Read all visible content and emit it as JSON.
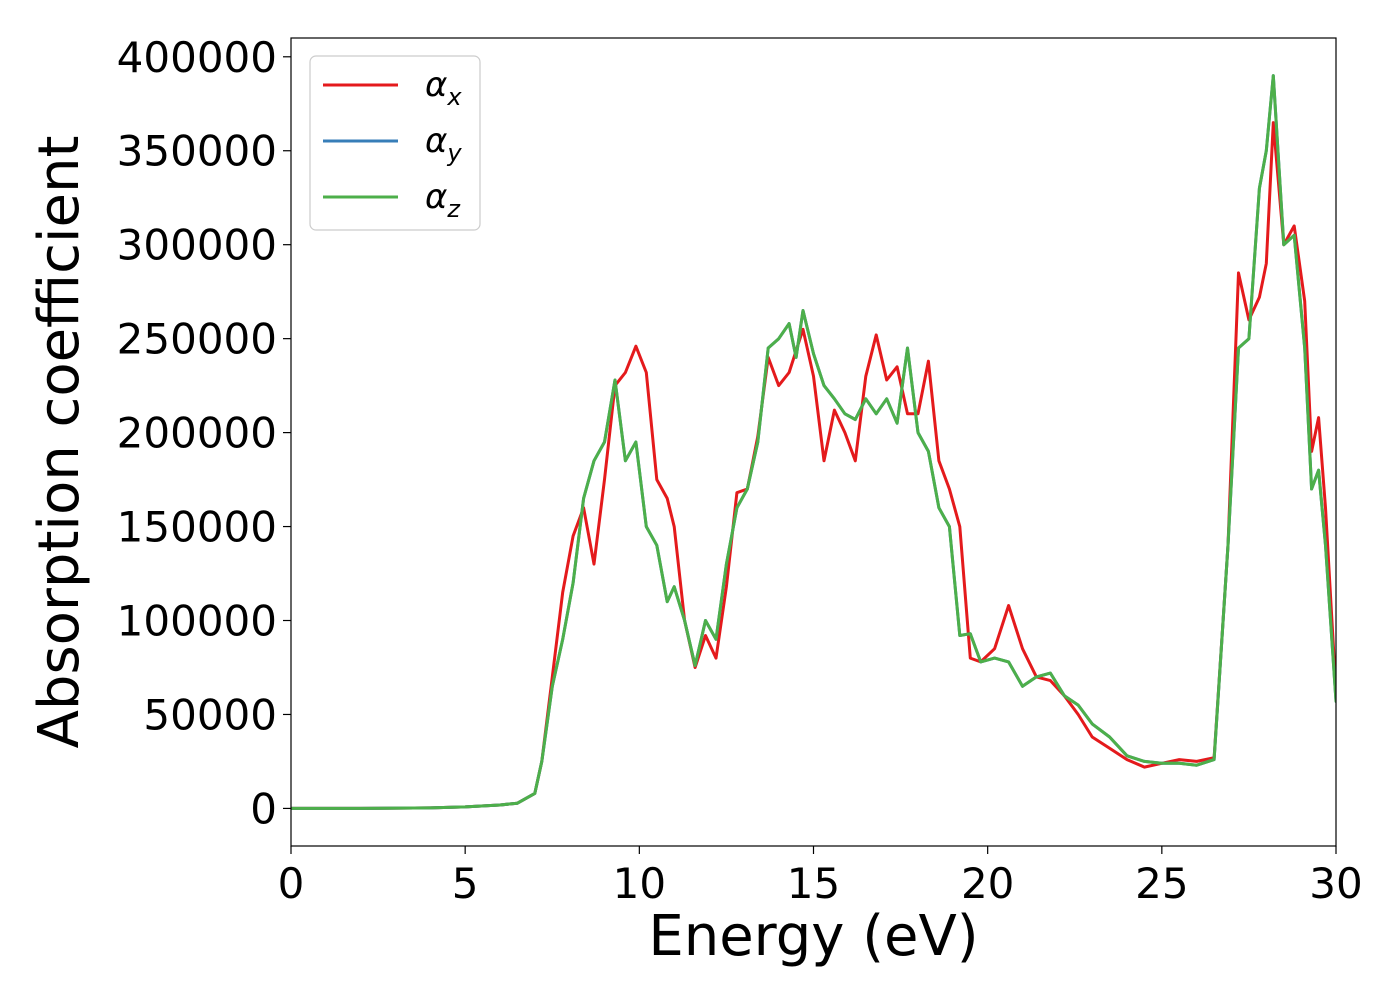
{
  "chart_data": {
    "type": "line",
    "xlabel": "Energy (eV)",
    "ylabel": "Absorption coefficient",
    "xlim": [
      0,
      30
    ],
    "ylim": [
      -20000,
      410000
    ],
    "x_ticks": [
      "0",
      "5",
      "10",
      "15",
      "20",
      "25",
      "30"
    ],
    "y_ticks": [
      "0",
      "50000",
      "100000",
      "150000",
      "200000",
      "250000",
      "300000",
      "350000",
      "400000"
    ],
    "grid": false,
    "legend_position": "top-left",
    "series": [
      {
        "name": "αx",
        "legend_base": "α",
        "legend_sub": "x",
        "color": "#e41a1c",
        "x": [
          0,
          2,
          4,
          5,
          6,
          6.5,
          7,
          7.2,
          7.5,
          7.8,
          8.1,
          8.4,
          8.7,
          9.0,
          9.3,
          9.6,
          9.9,
          10.2,
          10.5,
          10.8,
          11.0,
          11.3,
          11.6,
          11.9,
          12.2,
          12.5,
          12.8,
          13.1,
          13.4,
          13.7,
          14.0,
          14.3,
          14.7,
          15.0,
          15.3,
          15.6,
          15.9,
          16.2,
          16.5,
          16.8,
          17.1,
          17.4,
          17.7,
          18.0,
          18.3,
          18.6,
          18.9,
          19.2,
          19.5,
          19.8,
          20.2,
          20.6,
          21.0,
          21.4,
          21.8,
          22.2,
          22.6,
          23.0,
          23.5,
          24.0,
          24.5,
          25.0,
          25.5,
          26.0,
          26.5,
          26.9,
          27.2,
          27.5,
          27.8,
          28.0,
          28.2,
          28.5,
          28.8,
          29.1,
          29.3,
          29.5,
          29.7,
          30.0
        ],
        "values": [
          0,
          0,
          300,
          800,
          1800,
          2800,
          8000,
          25000,
          70000,
          115000,
          145000,
          160000,
          130000,
          175000,
          225000,
          232000,
          246000,
          232000,
          175000,
          165000,
          150000,
          100000,
          75000,
          92000,
          80000,
          118000,
          168000,
          170000,
          198000,
          240000,
          225000,
          232000,
          255000,
          230000,
          185000,
          212000,
          200000,
          185000,
          230000,
          252000,
          228000,
          235000,
          210000,
          210000,
          238000,
          185000,
          170000,
          150000,
          80000,
          78000,
          85000,
          108000,
          85000,
          70000,
          68000,
          60000,
          50000,
          38000,
          32000,
          26000,
          22000,
          24000,
          26000,
          25000,
          27000,
          140000,
          285000,
          260000,
          272000,
          290000,
          365000,
          300000,
          310000,
          270000,
          190000,
          208000,
          160000,
          62000
        ]
      },
      {
        "name": "αy",
        "legend_base": "α",
        "legend_sub": "y",
        "color": "#377eb8",
        "x": [
          0,
          2,
          4,
          5,
          6,
          6.5,
          7,
          7.2,
          7.5,
          7.8,
          8.1,
          8.4,
          8.7,
          9.0,
          9.3,
          9.6,
          9.9,
          10.2,
          10.5,
          10.8,
          11.0,
          11.3,
          11.6,
          11.9,
          12.2,
          12.5,
          12.8,
          13.1,
          13.4,
          13.7,
          14.0,
          14.3,
          14.5,
          14.7,
          15.0,
          15.3,
          15.6,
          15.9,
          16.2,
          16.5,
          16.8,
          17.1,
          17.4,
          17.7,
          18.0,
          18.3,
          18.6,
          18.9,
          19.2,
          19.5,
          19.8,
          20.2,
          20.6,
          21.0,
          21.4,
          21.8,
          22.2,
          22.6,
          23.0,
          23.5,
          24.0,
          24.5,
          25.0,
          25.5,
          26.0,
          26.5,
          26.9,
          27.2,
          27.5,
          27.8,
          28.0,
          28.2,
          28.5,
          28.8,
          29.1,
          29.3,
          29.5,
          29.7,
          30.0
        ],
        "values": [
          0,
          0,
          300,
          800,
          1800,
          2800,
          8000,
          25000,
          65000,
          90000,
          120000,
          165000,
          185000,
          195000,
          228000,
          185000,
          195000,
          150000,
          140000,
          110000,
          118000,
          100000,
          76000,
          100000,
          90000,
          130000,
          160000,
          170000,
          195000,
          245000,
          250000,
          258000,
          240000,
          265000,
          242000,
          225000,
          218000,
          210000,
          207000,
          218000,
          210000,
          218000,
          205000,
          245000,
          200000,
          190000,
          160000,
          150000,
          92000,
          93000,
          78000,
          80000,
          78000,
          65000,
          70000,
          72000,
          60000,
          55000,
          45000,
          38000,
          28000,
          25000,
          24000,
          24000,
          23000,
          26000,
          140000,
          245000,
          250000,
          330000,
          350000,
          390000,
          300000,
          305000,
          245000,
          170000,
          180000,
          140000,
          57000
        ]
      },
      {
        "name": "αz",
        "legend_base": "α",
        "legend_sub": "z",
        "color": "#4daf4a",
        "x": [
          0,
          2,
          4,
          5,
          6,
          6.5,
          7,
          7.2,
          7.5,
          7.8,
          8.1,
          8.4,
          8.7,
          9.0,
          9.3,
          9.6,
          9.9,
          10.2,
          10.5,
          10.8,
          11.0,
          11.3,
          11.6,
          11.9,
          12.2,
          12.5,
          12.8,
          13.1,
          13.4,
          13.7,
          14.0,
          14.3,
          14.5,
          14.7,
          15.0,
          15.3,
          15.6,
          15.9,
          16.2,
          16.5,
          16.8,
          17.1,
          17.4,
          17.7,
          18.0,
          18.3,
          18.6,
          18.9,
          19.2,
          19.5,
          19.8,
          20.2,
          20.6,
          21.0,
          21.4,
          21.8,
          22.2,
          22.6,
          23.0,
          23.5,
          24.0,
          24.5,
          25.0,
          25.5,
          26.0,
          26.5,
          26.9,
          27.2,
          27.5,
          27.8,
          28.0,
          28.2,
          28.5,
          28.8,
          29.1,
          29.3,
          29.5,
          29.7,
          30.0
        ],
        "values": [
          0,
          0,
          300,
          800,
          1800,
          2800,
          8000,
          25000,
          65000,
          90000,
          120000,
          165000,
          185000,
          195000,
          228000,
          185000,
          195000,
          150000,
          140000,
          110000,
          118000,
          100000,
          76000,
          100000,
          90000,
          130000,
          160000,
          170000,
          195000,
          245000,
          250000,
          258000,
          240000,
          265000,
          242000,
          225000,
          218000,
          210000,
          207000,
          218000,
          210000,
          218000,
          205000,
          245000,
          200000,
          190000,
          160000,
          150000,
          92000,
          93000,
          78000,
          80000,
          78000,
          65000,
          70000,
          72000,
          60000,
          55000,
          45000,
          38000,
          28000,
          25000,
          24000,
          24000,
          23000,
          26000,
          140000,
          245000,
          250000,
          330000,
          350000,
          390000,
          300000,
          305000,
          245000,
          170000,
          180000,
          140000,
          57000
        ]
      }
    ]
  }
}
